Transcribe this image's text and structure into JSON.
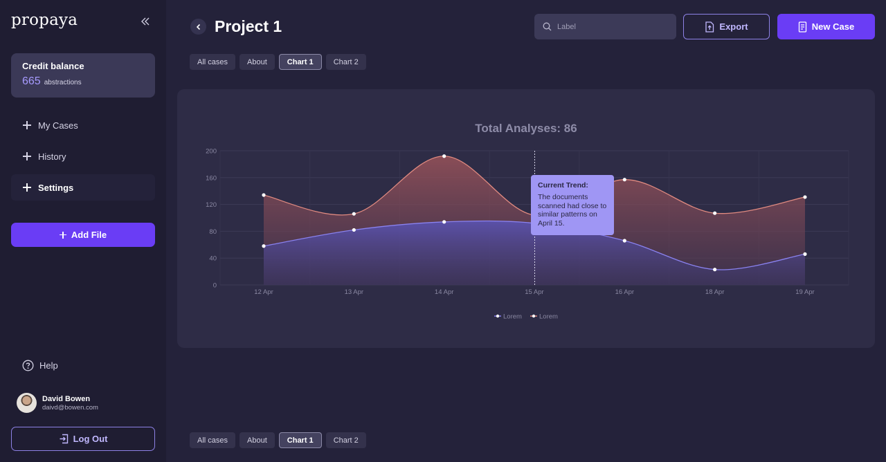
{
  "brand": {
    "logo": "propaya"
  },
  "credit": {
    "title": "Credit balance",
    "value": "665",
    "unit": "abstractions"
  },
  "nav": [
    {
      "label": "My Cases"
    },
    {
      "label": "History"
    },
    {
      "label": "Settings"
    }
  ],
  "add_file_label": "Add File",
  "help_label": "Help",
  "user": {
    "name": "David Bowen",
    "email": "daivd@bowen.com"
  },
  "logout_label": "Log Out",
  "header": {
    "title": "Project 1",
    "search_placeholder": "Label",
    "export_label": "Export",
    "new_case_label": "New Case"
  },
  "tabs": [
    "All cases",
    "About",
    "Chart 1",
    "Chart 2"
  ],
  "active_tab": "Chart 1",
  "tooltip": {
    "title": "Current Trend:",
    "text": "The documents scanned had close to similar patterns on April 15."
  },
  "colors": {
    "accent": "#6a3df5",
    "series_blue": "#7a73e8",
    "series_red": "#d4706a"
  },
  "icons": {
    "collapse": "double-chevron-left-icon",
    "search": "search-icon",
    "export": "file-export-icon",
    "new_case": "document-icon",
    "help": "help-circle-icon",
    "logout": "logout-icon"
  },
  "chart_data": {
    "type": "area",
    "title": "Total Analyses: 86",
    "categories": [
      "12 Apr",
      "13 Apr",
      "14 Apr",
      "15 Apr",
      "16 Apr",
      "18 Apr",
      "19 Apr"
    ],
    "ylim": [
      0,
      200
    ],
    "yticks": [
      0,
      40,
      80,
      120,
      160,
      200
    ],
    "grid": true,
    "legend_position": "bottom-center",
    "series": [
      {
        "name": "Lorem",
        "color": "#7a73e8",
        "values": [
          58,
          82,
          94,
          92,
          66,
          23,
          46
        ]
      },
      {
        "name": "Lorem",
        "color": "#d4706a",
        "values": [
          134,
          106,
          192,
          104,
          157,
          107,
          131
        ]
      }
    ],
    "highlight_category": "15 Apr"
  }
}
